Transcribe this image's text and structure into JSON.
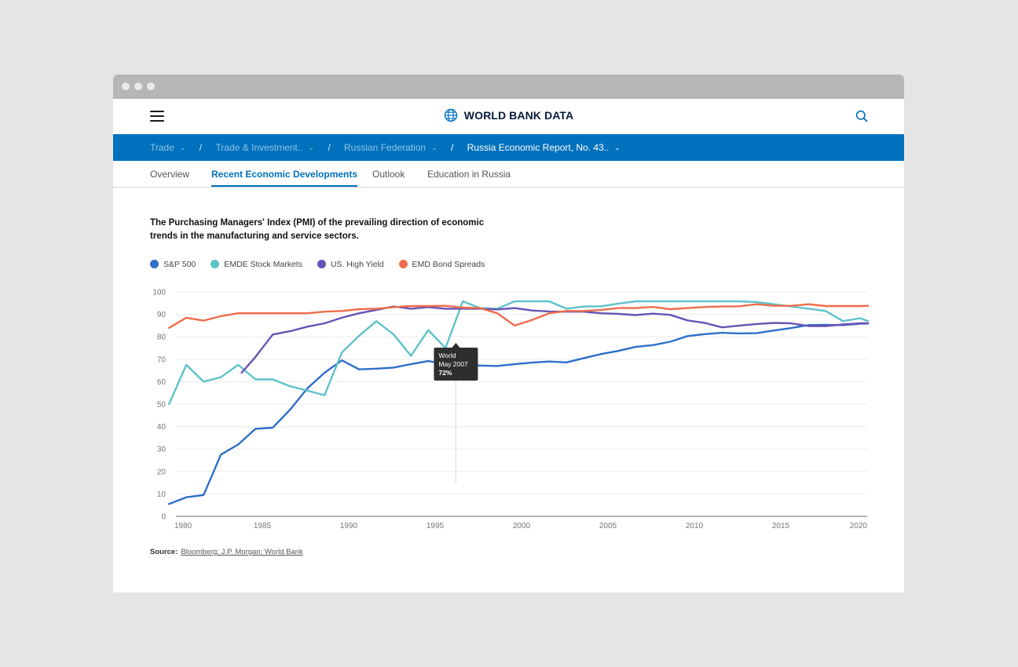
{
  "brand": {
    "name": "WORLD BANK DATA",
    "logo_icon": "globe-icon"
  },
  "breadcrumb": {
    "items": [
      {
        "label": "Trade"
      },
      {
        "label": "Trade & Investment.."
      },
      {
        "label": "Russian Federation"
      },
      {
        "label": "Russia Economic Report, No. 43.."
      }
    ],
    "separator": "/"
  },
  "tabs": [
    {
      "label": "Overview"
    },
    {
      "label": "Recent Economic Developments",
      "active": true
    },
    {
      "label": "Outlook"
    },
    {
      "label": "Education in Russia"
    }
  ],
  "chart_title": "The Purchasing Managers' Index (PMI) of the prevailing direction of economic trends in the manufacturing and service sectors.",
  "legend": [
    {
      "label": "S&P 500",
      "color": "#2d6fca"
    },
    {
      "label": "EMDE Stock Markets",
      "color": "#5ec2c9"
    },
    {
      "label": "US. High Yield",
      "color": "#6753b5"
    },
    {
      "label": "EMD Bond Spreads",
      "color": "#ee6c4d"
    }
  ],
  "tooltip": {
    "series": "World",
    "date": "May 2007",
    "value": "72%"
  },
  "source": {
    "label": "Source:",
    "text": "Bloomberg; J.P. Morgan; World Bank"
  },
  "chart_data": {
    "type": "line",
    "title": "The Purchasing Managers' Index (PMI) of the prevailing direction of economic trends in the manufacturing and service sectors.",
    "xlim": [
      1980,
      2020
    ],
    "ylim": [
      0,
      100
    ],
    "xticks": [
      1980,
      1985,
      1990,
      1995,
      2000,
      2005,
      2010,
      2015,
      2020
    ],
    "yticks": [
      0,
      10,
      20,
      30,
      40,
      50,
      60,
      70,
      80,
      90,
      100
    ],
    "grid": true,
    "legend_position": "top-left",
    "hover_year": 1996.2,
    "series": [
      {
        "name": "S&P 500",
        "color": "#2d6fca",
        "x": [
          1979.6,
          1980.6,
          1981.6,
          1982.6,
          1983.6,
          1984.6,
          1985.6,
          1986.6,
          1987.6,
          1988.6,
          1989.6,
          1990.6,
          1991.6,
          1992.6,
          1993.6,
          1994.6,
          1995.6,
          1996.6,
          1997.6,
          1998.6,
          1999.6,
          2000.6,
          2001.6,
          2002.6,
          2003.6,
          2004.6,
          2005.6,
          2006.6,
          2007.6,
          2008.6,
          2009.6,
          2010.6,
          2011.6,
          2012.6,
          2013.6,
          2014.6,
          2015.6,
          2016.6,
          2017.6,
          2018.6,
          2019.6,
          2020.6
        ],
        "y": [
          5.5,
          8.5,
          9.5,
          27.5,
          32,
          39,
          39.5,
          47.5,
          57,
          64,
          69.5,
          65.5,
          65.8,
          66.3,
          67.8,
          69.2,
          67.8,
          67.2,
          67.2,
          67,
          67.8,
          68.5,
          69,
          68.6,
          70.5,
          72.3,
          73.7,
          75.5,
          76.3,
          77.8,
          80.3,
          81.2,
          81.8,
          81.5,
          81.6,
          82.8,
          83.9,
          85.2,
          85.3,
          85.2,
          85.8,
          85.9
        ]
      },
      {
        "name": "EMDE Stock Markets",
        "color": "#5ec2c9",
        "x": [
          1979.6,
          1980.6,
          1981.6,
          1982.6,
          1983.6,
          1984.6,
          1985.6,
          1986.6,
          1987.6,
          1988.6,
          1989.6,
          1990.6,
          1991.6,
          1992.6,
          1993.6,
          1994.6,
          1995.6,
          1996.6,
          1997.6,
          1998.6,
          1999.6,
          2000.6,
          2001.6,
          2002.6,
          2003.6,
          2004.6,
          2005.6,
          2006.6,
          2007.6,
          2008.6,
          2009.6,
          2010.6,
          2011.6,
          2012.6,
          2013.6,
          2014.6,
          2015.6,
          2016.6,
          2017.6,
          2018.6,
          2019.6,
          2020.6
        ],
        "y": [
          50,
          67.5,
          60,
          62,
          67.5,
          61,
          61,
          58,
          56,
          54,
          73,
          80.5,
          87,
          81,
          71.5,
          83,
          75,
          95.8,
          92.8,
          92.5,
          95.8,
          95.8,
          95.8,
          92.5,
          93.5,
          93.6,
          94.8,
          95.8,
          95.8,
          95.8,
          95.8,
          95.8,
          95.8,
          95.8,
          95.5,
          94.5,
          93.5,
          92.5,
          91.5,
          87,
          88.3,
          87
        ]
      },
      {
        "name": "US. High Yield",
        "color": "#6753b5",
        "x": [
          1983.8,
          1984.6,
          1985.6,
          1986.6,
          1987.6,
          1988.6,
          1989.6,
          1990.6,
          1991.6,
          1992.6,
          1993.6,
          1994.6,
          1995.6,
          1996.6,
          1997.6,
          1998.6,
          1999.6,
          2000.6,
          2001.6,
          2002.6,
          2003.6,
          2004.6,
          2005.6,
          2006.6,
          2007.6,
          2008.6,
          2009.6,
          2010.6,
          2011.6,
          2012.6,
          2013.6,
          2014.6,
          2015.6,
          2016.6,
          2017.6,
          2018.6,
          2019.6,
          2020.6
        ],
        "y": [
          64,
          71,
          81,
          82.5,
          84.5,
          86,
          88.5,
          90.5,
          92,
          93.5,
          92.5,
          93.2,
          92.5,
          92.5,
          92.5,
          92.2,
          92.8,
          91.7,
          91.3,
          91.2,
          91.2,
          90.5,
          90.2,
          89.7,
          90.3,
          89.8,
          87.3,
          86.2,
          84.2,
          85,
          85.7,
          86.2,
          86,
          84.8,
          84.8,
          85.5,
          86,
          86
        ]
      },
      {
        "name": "EMD Bond Spreads",
        "color": "#ee6c4d",
        "x": [
          1979.6,
          1980.6,
          1981.6,
          1982.6,
          1983.6,
          1984.6,
          1985.6,
          1986.6,
          1987.6,
          1988.6,
          1989.6,
          1990.6,
          1991.6,
          1992.6,
          1993.6,
          1994.6,
          1995.6,
          1996.6,
          1997.6,
          1998.6,
          1999.6,
          2000.6,
          2001.6,
          2002.6,
          2003.6,
          2004.6,
          2005.6,
          2006.6,
          2007.6,
          2008.6,
          2009.6,
          2010.6,
          2011.6,
          2012.6,
          2013.6,
          2014.6,
          2015.6,
          2016.6,
          2017.6,
          2018.6,
          2019.6,
          2020.6
        ],
        "y": [
          84,
          88.5,
          87.2,
          89.2,
          90.5,
          90.5,
          90.5,
          90.5,
          90.5,
          91.2,
          91.5,
          92.3,
          92.5,
          93.2,
          93.7,
          93.7,
          93.8,
          93,
          92.8,
          90.5,
          85,
          87.5,
          90.5,
          91.5,
          91.5,
          92,
          92.8,
          92.8,
          93.3,
          92.3,
          92.8,
          93.3,
          93.5,
          93.6,
          94.5,
          93.8,
          93.8,
          94.5,
          93.7,
          93.7,
          93.7,
          93.8
        ]
      }
    ]
  }
}
